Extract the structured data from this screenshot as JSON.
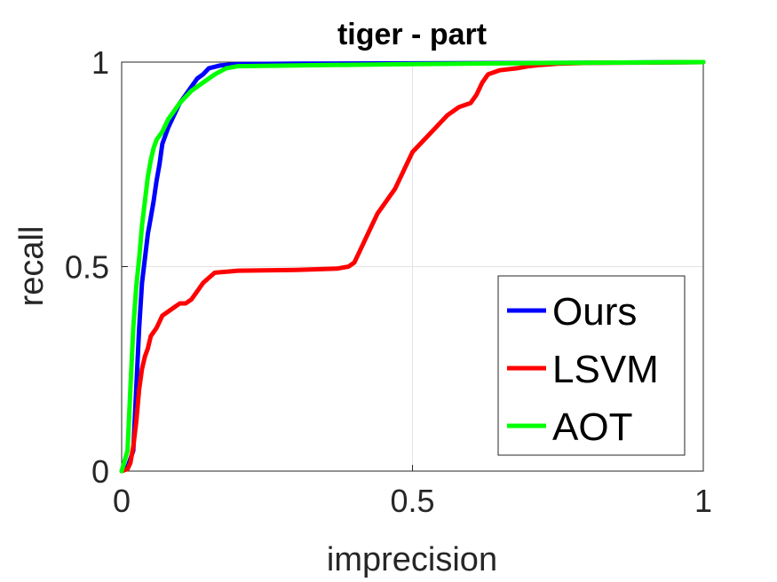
{
  "chart_data": {
    "type": "line",
    "title": "tiger - part",
    "xlabel": "imprecision",
    "ylabel": "recall",
    "xlim": [
      0,
      1
    ],
    "ylim": [
      0,
      1
    ],
    "xticks": [
      0,
      0.5,
      1
    ],
    "yticks": [
      0,
      0.5,
      1
    ],
    "xtick_labels": [
      "0",
      "0.5",
      "1"
    ],
    "ytick_labels": [
      "0",
      "0.5",
      "1"
    ],
    "grid": true,
    "legend_position": "bottom-right",
    "series": [
      {
        "name": "Ours",
        "color": "#0000ff",
        "x": [
          0.0,
          0.01,
          0.02,
          0.025,
          0.03,
          0.035,
          0.04,
          0.045,
          0.05,
          0.055,
          0.06,
          0.065,
          0.07,
          0.08,
          0.09,
          0.1,
          0.11,
          0.12,
          0.13,
          0.14,
          0.15,
          0.17,
          0.2,
          0.3,
          0.5,
          0.75,
          1.0
        ],
        "y": [
          0.0,
          0.01,
          0.05,
          0.2,
          0.35,
          0.46,
          0.52,
          0.58,
          0.62,
          0.66,
          0.71,
          0.75,
          0.8,
          0.84,
          0.87,
          0.9,
          0.92,
          0.94,
          0.96,
          0.97,
          0.985,
          0.992,
          0.995,
          0.996,
          0.997,
          0.998,
          1.0
        ]
      },
      {
        "name": "LSVM",
        "color": "#ff0000",
        "x": [
          0.0,
          0.01,
          0.015,
          0.02,
          0.025,
          0.03,
          0.035,
          0.04,
          0.045,
          0.05,
          0.055,
          0.06,
          0.07,
          0.08,
          0.09,
          0.1,
          0.11,
          0.12,
          0.13,
          0.14,
          0.16,
          0.2,
          0.3,
          0.37,
          0.39,
          0.4,
          0.41,
          0.42,
          0.43,
          0.44,
          0.45,
          0.46,
          0.47,
          0.48,
          0.49,
          0.5,
          0.52,
          0.54,
          0.56,
          0.58,
          0.6,
          0.61,
          0.62,
          0.63,
          0.64,
          0.65,
          0.68,
          0.7,
          0.72,
          0.75,
          0.8,
          0.9,
          1.0
        ],
        "y": [
          0.0,
          0.005,
          0.02,
          0.06,
          0.12,
          0.2,
          0.25,
          0.28,
          0.3,
          0.33,
          0.34,
          0.35,
          0.38,
          0.39,
          0.4,
          0.41,
          0.41,
          0.42,
          0.44,
          0.46,
          0.485,
          0.49,
          0.492,
          0.495,
          0.5,
          0.51,
          0.54,
          0.57,
          0.6,
          0.63,
          0.65,
          0.67,
          0.69,
          0.72,
          0.75,
          0.78,
          0.81,
          0.84,
          0.87,
          0.89,
          0.9,
          0.92,
          0.95,
          0.97,
          0.975,
          0.98,
          0.985,
          0.99,
          0.993,
          0.996,
          0.998,
          0.999,
          1.0
        ]
      },
      {
        "name": "AOT",
        "color": "#00ff00",
        "x": [
          0.0,
          0.01,
          0.015,
          0.02,
          0.025,
          0.03,
          0.035,
          0.04,
          0.045,
          0.05,
          0.055,
          0.06,
          0.07,
          0.08,
          0.09,
          0.1,
          0.12,
          0.14,
          0.16,
          0.18,
          0.2,
          0.3,
          0.5,
          0.75,
          1.0
        ],
        "y": [
          0.0,
          0.05,
          0.2,
          0.35,
          0.45,
          0.52,
          0.6,
          0.66,
          0.72,
          0.76,
          0.79,
          0.81,
          0.83,
          0.86,
          0.88,
          0.9,
          0.93,
          0.95,
          0.97,
          0.985,
          0.99,
          0.992,
          0.995,
          0.998,
          1.0
        ]
      }
    ]
  }
}
